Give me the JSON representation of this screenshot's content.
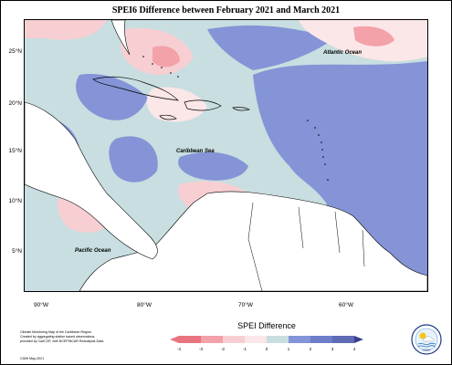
{
  "title": "SPEI6 Difference between February 2021 and March 2021",
  "latitudes": [
    "25°N",
    "20°N",
    "15°N",
    "10°N",
    "5°N"
  ],
  "longitudes": [
    "90°W",
    "80°W",
    "70°W",
    "60°W"
  ],
  "labels": {
    "atlantic": "Atlantic Ocean",
    "caribbean": "Caribbean Sea",
    "pacific": "Pacific Ocean"
  },
  "credit": {
    "line1": "Climate Monitoring Map of the Caribbean Region.",
    "line2": "Created by aggregating station based observations,",
    "line3": "provided by CariCOF, with NCEP/NCAR Reanalysis Data.",
    "date": "CIMH May-2021"
  },
  "legend": {
    "title": "SPEI Difference",
    "ticks": [
      "-4",
      "-3",
      "-2",
      "-1",
      "0",
      "1",
      "2",
      "3",
      "4"
    ],
    "colors": [
      "#e8747f",
      "#f2a2a8",
      "#f7cfd2",
      "#fbe6e8",
      "#c8dee0",
      "#8494d6",
      "#6f7ec8",
      "#5f6bb4",
      "#3c3f8f"
    ]
  },
  "logo_text": "CIMH"
}
